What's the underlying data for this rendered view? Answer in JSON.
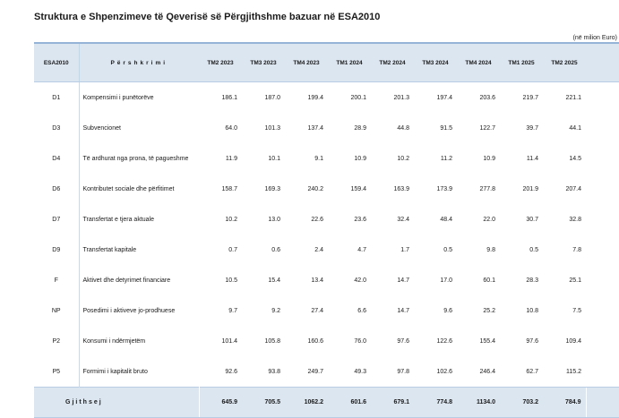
{
  "title": "Struktura e Shpenzimeve të Qeverisë së Përgjithshme bazuar në ESA2010",
  "unit_note": "(në milion Euro)",
  "colors": {
    "band_fill": "#dce6f1",
    "border_strong": "#95b3d7",
    "border_light": "#b8cce4",
    "border_mid": "#bdd7ee",
    "border_lighter": "#c5d9f1",
    "text": "#1a1a1a"
  },
  "table": {
    "columns": [
      "ESA2010",
      "Përshkrimi",
      "TM2 2023",
      "TM3 2023",
      "TM4 2023",
      "TM1 2024",
      "TM2 2024",
      "TM3 2024",
      "TM4 2024",
      "TM1 2025",
      "TM2 2025"
    ],
    "rows": [
      {
        "code": "D1",
        "description": "Kompensimi i punëtorëve",
        "values": [
          "186.1",
          "187.0",
          "199.4",
          "200.1",
          "201.3",
          "197.4",
          "203.6",
          "219.7",
          "221.1"
        ]
      },
      {
        "code": "D3",
        "description": "Subvencionet",
        "values": [
          "64.0",
          "101.3",
          "137.4",
          "28.9",
          "44.8",
          "91.5",
          "122.7",
          "39.7",
          "44.1"
        ]
      },
      {
        "code": "D4",
        "description": "Të ardhurat nga prona, të pagueshme",
        "values": [
          "11.9",
          "10.1",
          "9.1",
          "10.9",
          "10.2",
          "11.2",
          "10.9",
          "11.4",
          "14.5"
        ]
      },
      {
        "code": "D6",
        "description": "Kontributet sociale dhe përfitimet",
        "values": [
          "158.7",
          "169.3",
          "240.2",
          "159.4",
          "163.9",
          "173.9",
          "277.8",
          "201.9",
          "207.4"
        ]
      },
      {
        "code": "D7",
        "description": "Transfertat e tjera aktuale",
        "values": [
          "10.2",
          "13.0",
          "22.6",
          "23.6",
          "32.4",
          "48.4",
          "22.0",
          "30.7",
          "32.8"
        ]
      },
      {
        "code": "D9",
        "description": "Transfertat kapitale",
        "values": [
          "0.7",
          "0.6",
          "2.4",
          "4.7",
          "1.7",
          "0.5",
          "9.8",
          "0.5",
          "7.8"
        ]
      },
      {
        "code": "F",
        "description": "Aktivet dhe detyrimet financiare",
        "values": [
          "10.5",
          "15.4",
          "13.4",
          "42.0",
          "14.7",
          "17.0",
          "60.1",
          "28.3",
          "25.1"
        ]
      },
      {
        "code": "NP",
        "description": "Posedimi i aktiveve jo-prodhuese",
        "values": [
          "9.7",
          "9.2",
          "27.4",
          "6.6",
          "14.7",
          "9.6",
          "25.2",
          "10.8",
          "7.5"
        ]
      },
      {
        "code": "P2",
        "description": "Konsumi i ndërmjetëm",
        "values": [
          "101.4",
          "105.8",
          "160.6",
          "76.0",
          "97.6",
          "122.6",
          "155.4",
          "97.6",
          "109.4"
        ]
      },
      {
        "code": "P5",
        "description": "Formimi i kapitalit bruto",
        "values": [
          "92.6",
          "93.8",
          "249.7",
          "49.3",
          "97.8",
          "102.6",
          "246.4",
          "62.7",
          "115.2"
        ]
      }
    ],
    "total": {
      "label": "Gjithsej",
      "values": [
        "645.9",
        "705.5",
        "1062.2",
        "601.6",
        "679.1",
        "774.8",
        "1134.0",
        "703.2",
        "784.9"
      ]
    }
  }
}
